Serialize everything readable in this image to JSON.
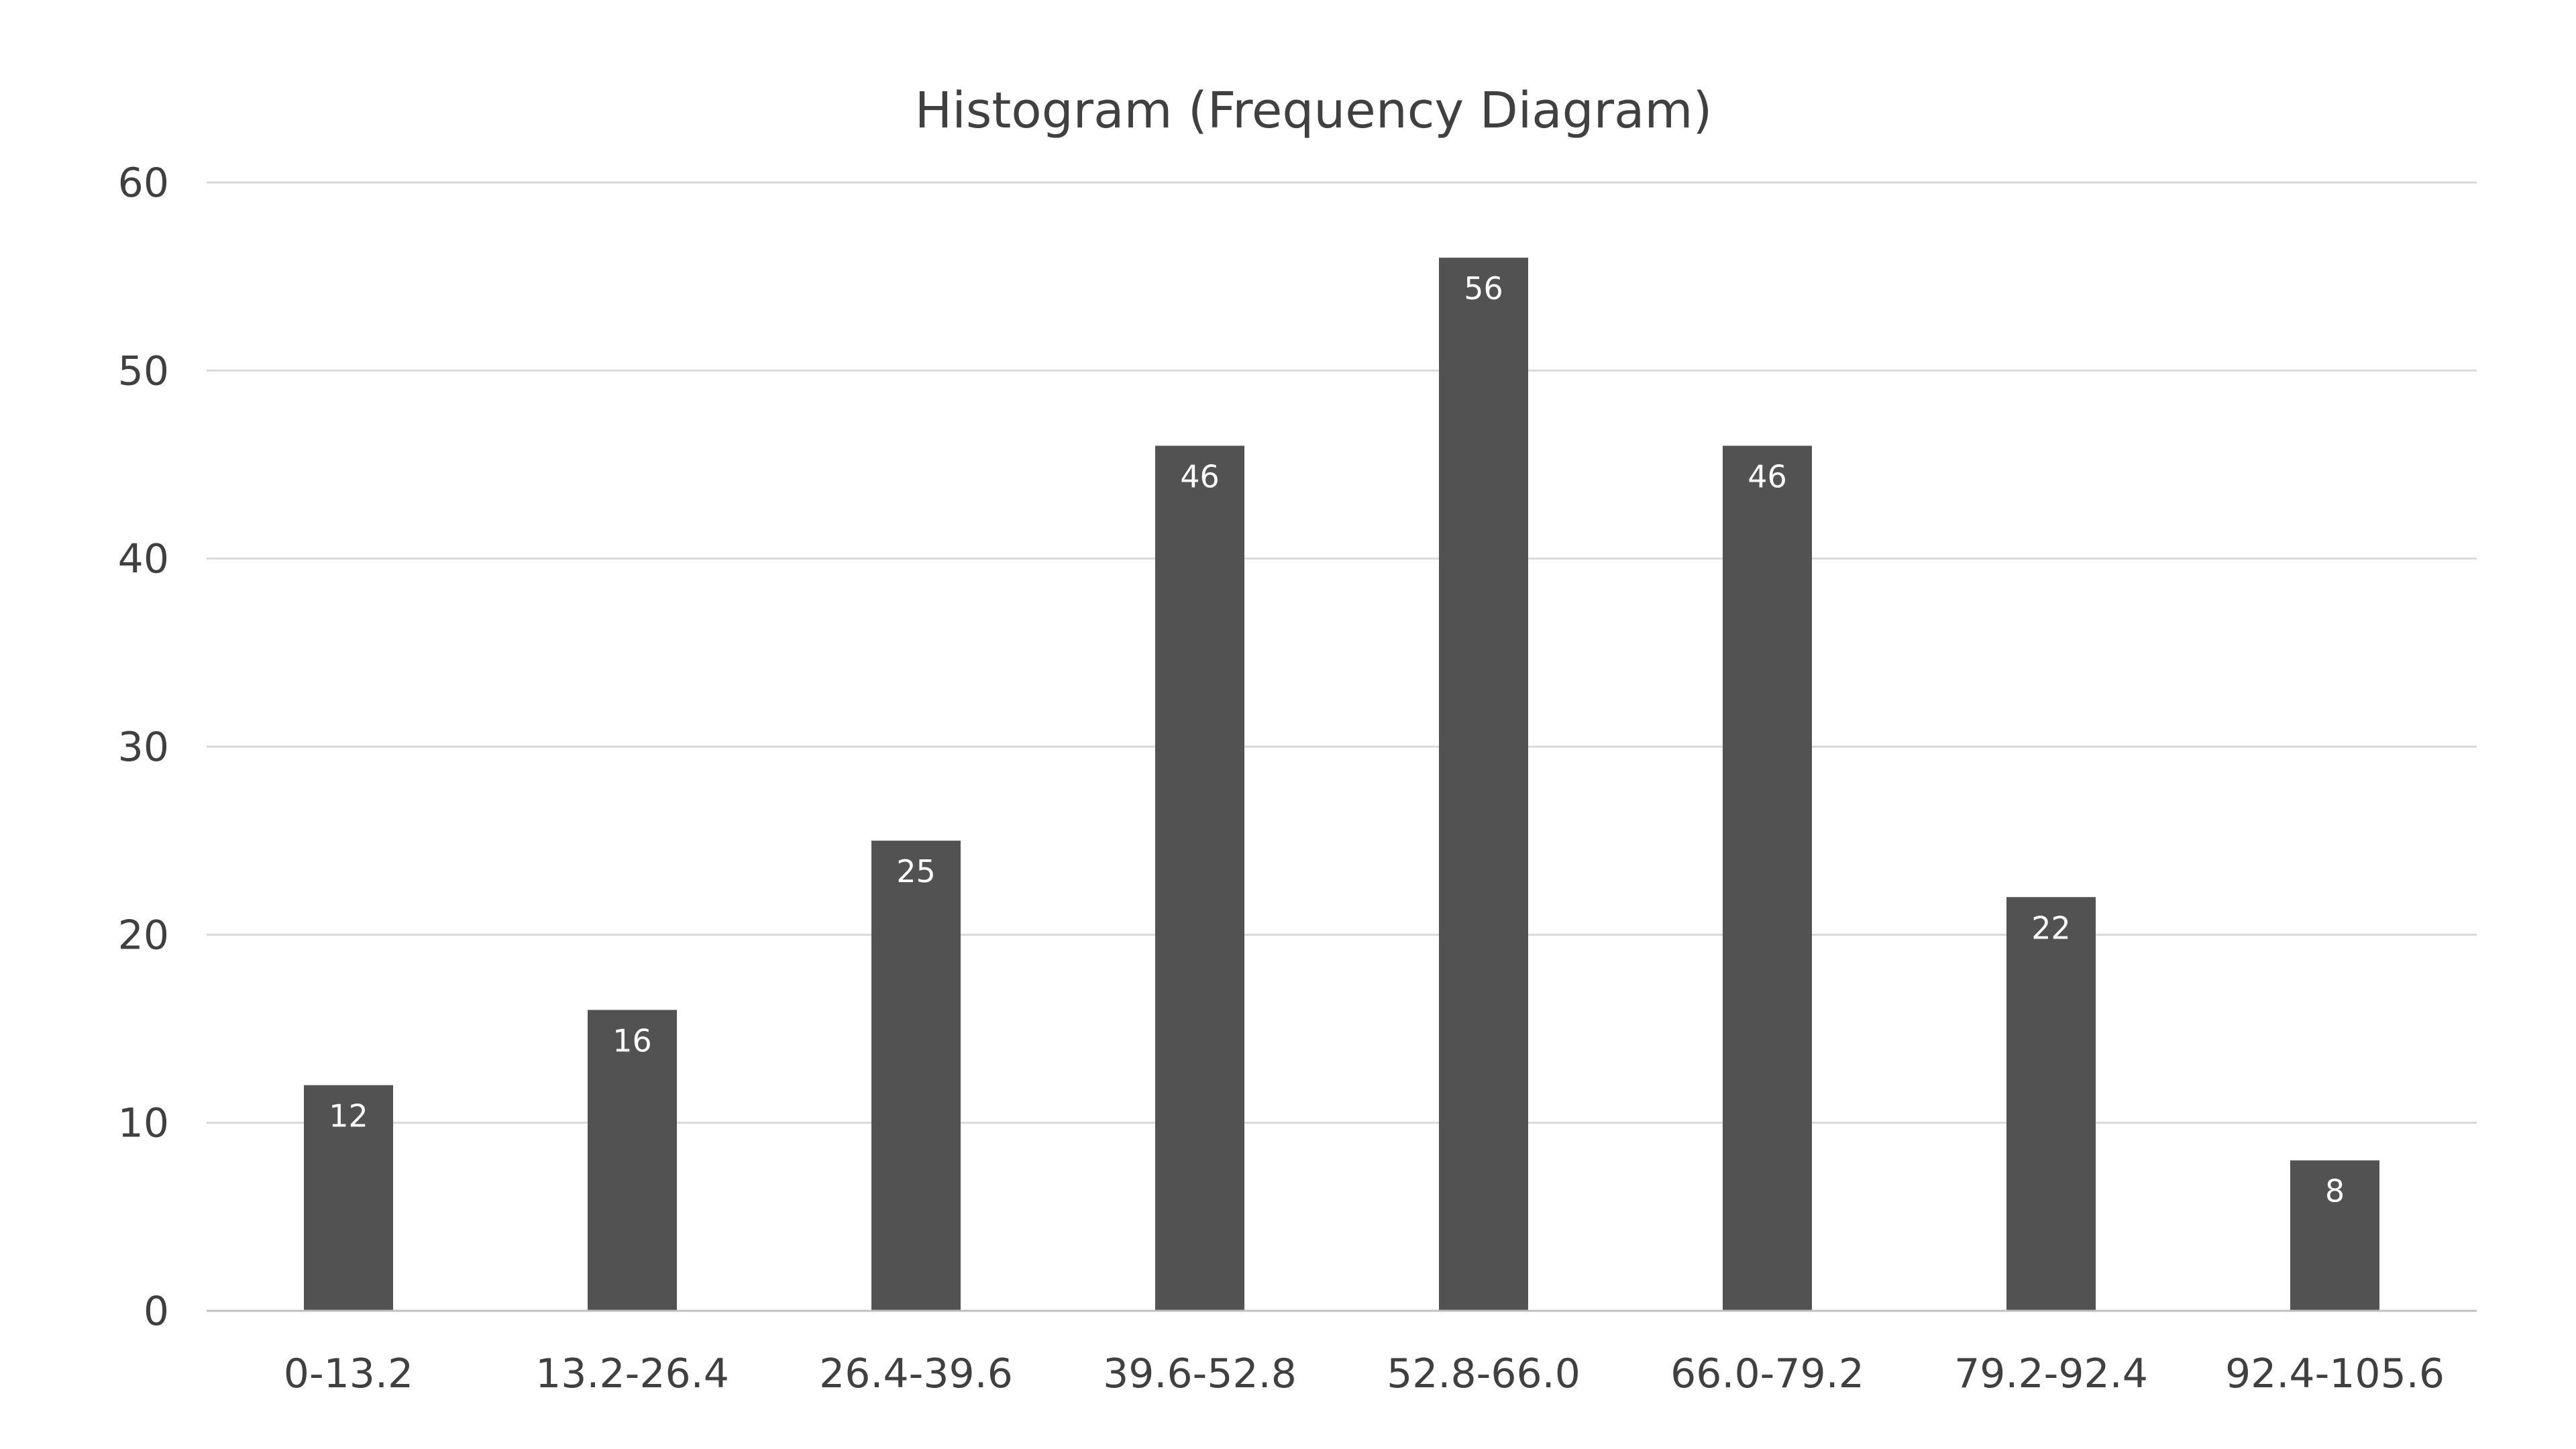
{
  "chart_data": {
    "type": "bar",
    "title": "Histogram (Frequency Diagram)",
    "categories": [
      "0-13.2",
      "13.2-26.4",
      "26.4-39.6",
      "39.6-52.8",
      "52.8-66.0",
      "66.0-79.2",
      "79.2-92.4",
      "92.4-105.6"
    ],
    "values": [
      12,
      16,
      25,
      46,
      56,
      46,
      22,
      8
    ],
    "data_labels": [
      "12",
      "16",
      "25",
      "46",
      "56",
      "46",
      "22",
      "8"
    ],
    "ylim": [
      0,
      60
    ],
    "yticks": [
      0,
      10,
      20,
      30,
      40,
      50,
      60
    ],
    "grid": true,
    "legend": "none",
    "bar_color": "#525252",
    "data_label_color": "#ffffff",
    "text_color": "#404040",
    "grid_color": "#d9d9d9"
  }
}
